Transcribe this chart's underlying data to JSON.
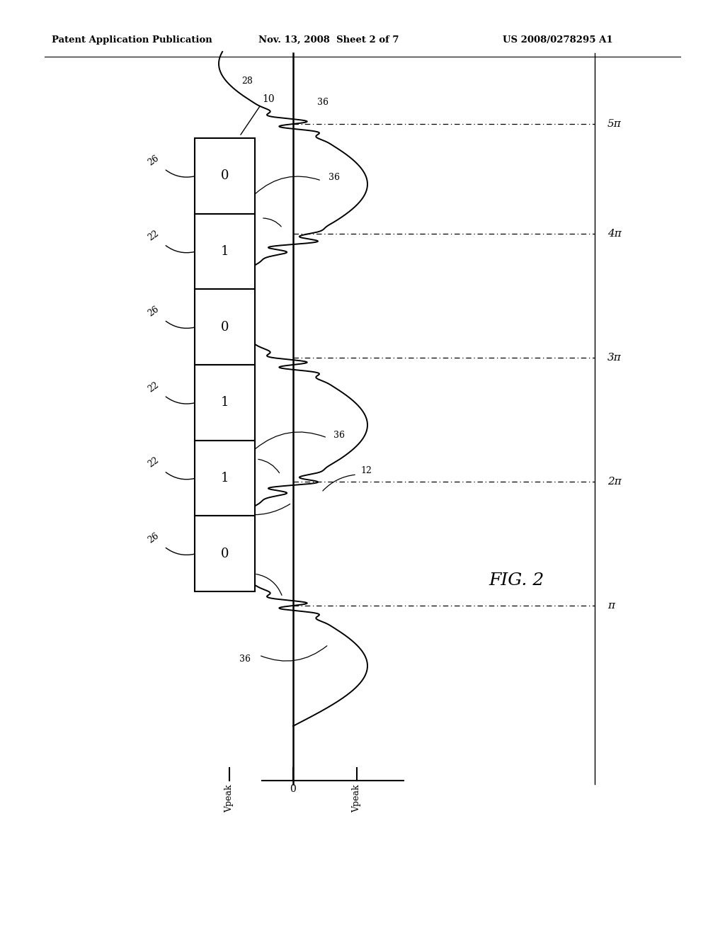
{
  "bg_color": "#ffffff",
  "header_left": "Patent Application Publication",
  "header_mid": "Nov. 13, 2008  Sheet 2 of 7",
  "header_right": "US 2008/0278295 A1",
  "fig_label": "FIG. 2",
  "bit_table": {
    "values": [
      "0",
      "1",
      "0",
      "1",
      "1",
      "0"
    ],
    "row_labels": [
      "26",
      "22",
      "26",
      "22",
      "22",
      "26"
    ]
  },
  "pi_labels": [
    "π",
    "2π",
    "3π",
    "4π",
    "5π"
  ],
  "axis_labels": {
    "y_neg": "Vpeak",
    "y_zero": "0",
    "y_pos": "Vpeak"
  },
  "colors": {
    "black": "#000000",
    "white": "#ffffff"
  }
}
